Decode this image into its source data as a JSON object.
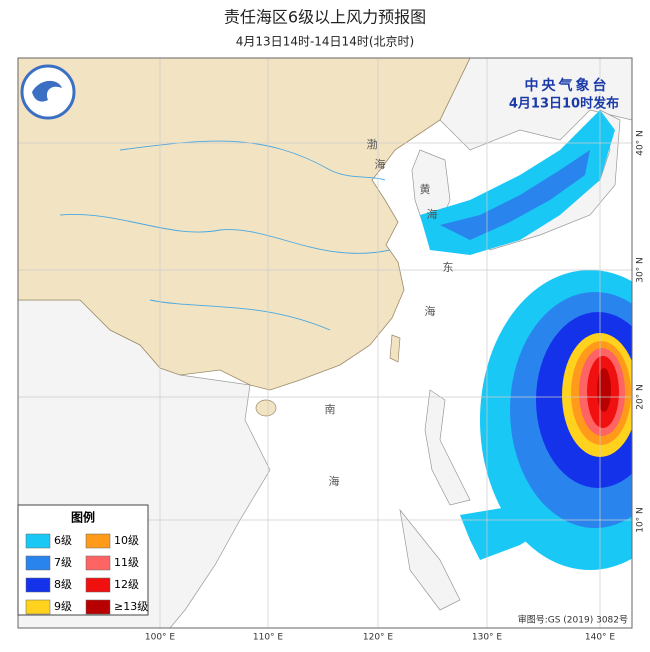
{
  "header": {
    "title": "责任海区6级以上风力预报图",
    "subtitle": "4月13日14时-14日14时(北京时)"
  },
  "issuer": {
    "name": "中央气象台",
    "time": "4月13日10时发布"
  },
  "legend": {
    "title": "图例",
    "items": [
      {
        "label": "6级",
        "color": "#19c8f5"
      },
      {
        "label": "10级",
        "color": "#ff9a1a"
      },
      {
        "label": "7级",
        "color": "#2a84ee"
      },
      {
        "label": "11级",
        "color": "#ff6464"
      },
      {
        "label": "8级",
        "color": "#1432ea"
      },
      {
        "label": "12级",
        "color": "#f01010"
      },
      {
        "label": "9级",
        "color": "#ffd21e"
      },
      {
        "label": "≥13级",
        "color": "#b80000"
      }
    ]
  },
  "map": {
    "sea_labels": [
      "渤",
      "海",
      "黄",
      "海",
      "东",
      "海",
      "南",
      "海"
    ],
    "lon_labels": [
      "100° E",
      "110° E",
      "120° E",
      "130° E",
      "140° E"
    ],
    "lat_labels": [
      "40° N",
      "30° N",
      "20° N",
      "10° N"
    ]
  },
  "footer": {
    "approval": "审图号:GS (2019) 3082号"
  }
}
